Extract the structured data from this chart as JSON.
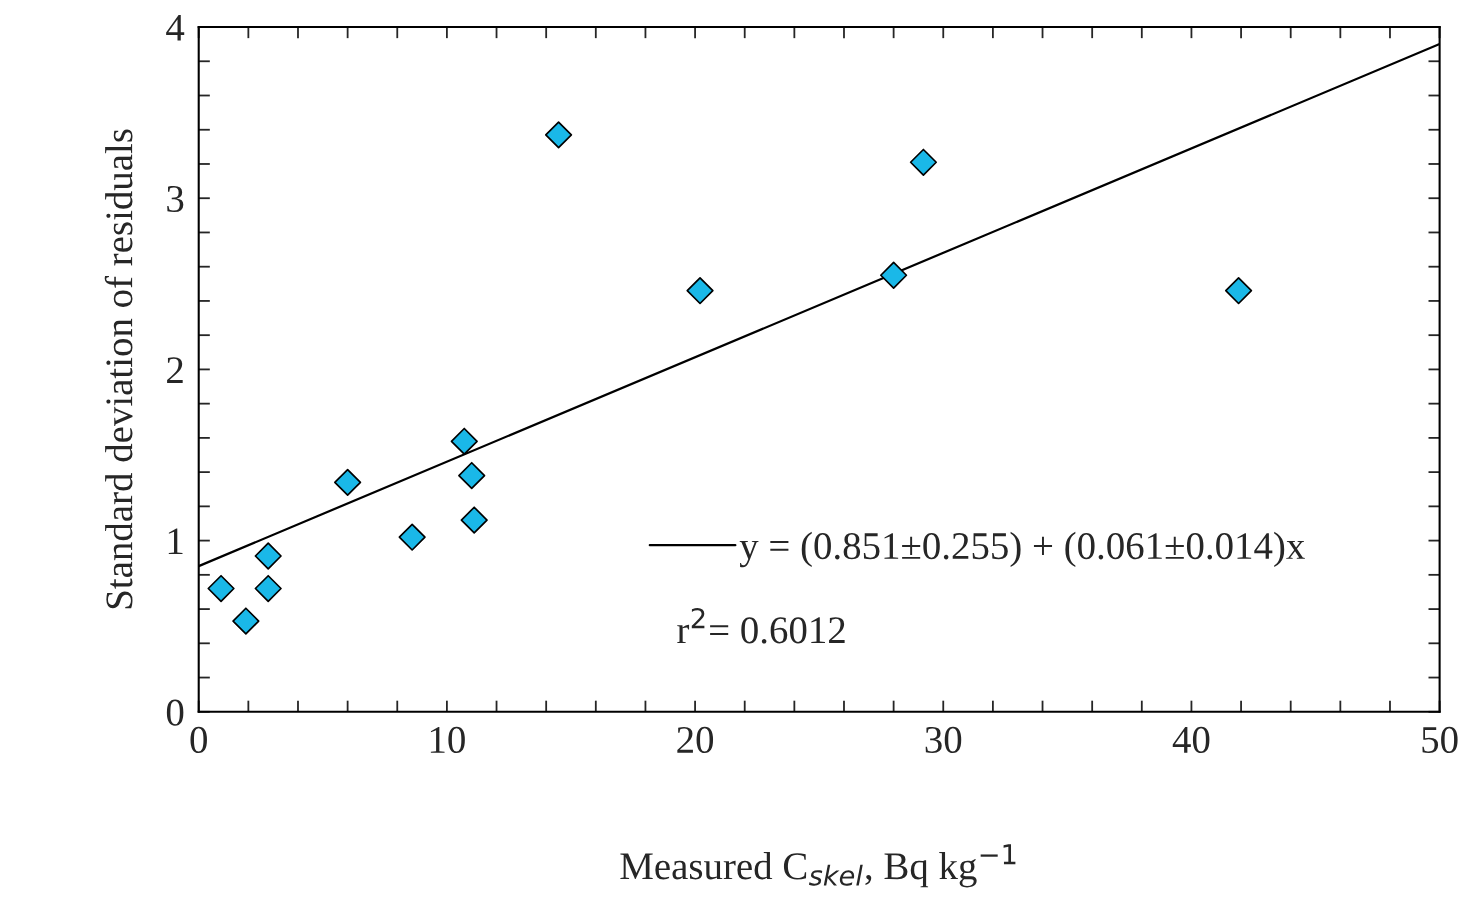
{
  "chart_data": {
    "type": "scatter",
    "xlabel": "Measured C$_{skel}$, Bq kg$^{−1}$",
    "ylabel": "Standard deviation of residuals",
    "series": [
      {
        "color": "#1ab8e8",
        "marker": "diamond",
        "x": [
          0.9,
          1.9,
          2.8,
          2.8,
          6.0,
          8.6,
          10.7,
          11.0,
          11.1,
          14.5,
          20.2,
          28.0,
          29.2,
          41.9
        ],
        "values": [
          0.72,
          0.53,
          0.72,
          0.91,
          1.34,
          1.02,
          1.58,
          1.38,
          1.12,
          3.37,
          2.46,
          2.55,
          3.21,
          2.46
        ]
      },
      {
        "type": "line",
        "name": "y = (0.851±0.255) + (0.061±0.014)x",
        "color": "#000000",
        "marker": "none",
        "line_style": "solid",
        "x": [
          0,
          50
        ],
        "values": [
          0.851,
          3.901
        ]
      }
    ],
    "annotations": [
      "r$^{2}$= 0.6012"
    ],
    "legend": "bottom right",
    "xlim": [
      0,
      50
    ],
    "ylim": [
      0,
      4
    ],
    "xticks": [
      0,
      {
        "value": 2,
        "label": null
      },
      {
        "value": 4,
        "label": null
      },
      {
        "value": 6,
        "label": null
      },
      {
        "value": 8,
        "label": null
      },
      10,
      {
        "value": 12,
        "label": null
      },
      {
        "value": 14,
        "label": null
      },
      {
        "value": 16,
        "label": null
      },
      {
        "value": 18,
        "label": null
      },
      20,
      {
        "value": 22,
        "label": null
      },
      {
        "value": 24,
        "label": null
      },
      {
        "value": 26,
        "label": null
      },
      {
        "value": 28,
        "label": null
      },
      30,
      {
        "value": 32,
        "label": null
      },
      {
        "value": 34,
        "label": null
      },
      {
        "value": 36,
        "label": null
      },
      {
        "value": 38,
        "label": null
      },
      40,
      {
        "value": 42,
        "label": null
      },
      {
        "value": 44,
        "label": null
      },
      {
        "value": 46,
        "label": null
      },
      {
        "value": 48,
        "label": null
      },
      50
    ],
    "yticks": [
      0,
      {
        "value": 0.2,
        "label": null
      },
      {
        "value": 0.4,
        "label": null
      },
      {
        "value": 0.6,
        "label": null
      },
      {
        "value": 0.8,
        "label": null
      },
      1,
      {
        "value": 1.2,
        "label": null
      },
      {
        "value": 1.4,
        "label": null
      },
      {
        "value": 1.6,
        "label": null
      },
      {
        "value": 1.8,
        "label": null
      },
      2,
      {
        "value": 2.2,
        "label": null
      },
      {
        "value": 2.4,
        "label": null
      },
      {
        "value": 2.6,
        "label": null
      },
      {
        "value": 2.8,
        "label": null
      },
      3,
      {
        "value": 3.2,
        "label": null
      },
      {
        "value": 3.4,
        "label": null
      },
      {
        "value": 3.6,
        "label": null
      },
      {
        "value": 3.8,
        "label": null
      },
      4
    ],
    "grid": false
  }
}
